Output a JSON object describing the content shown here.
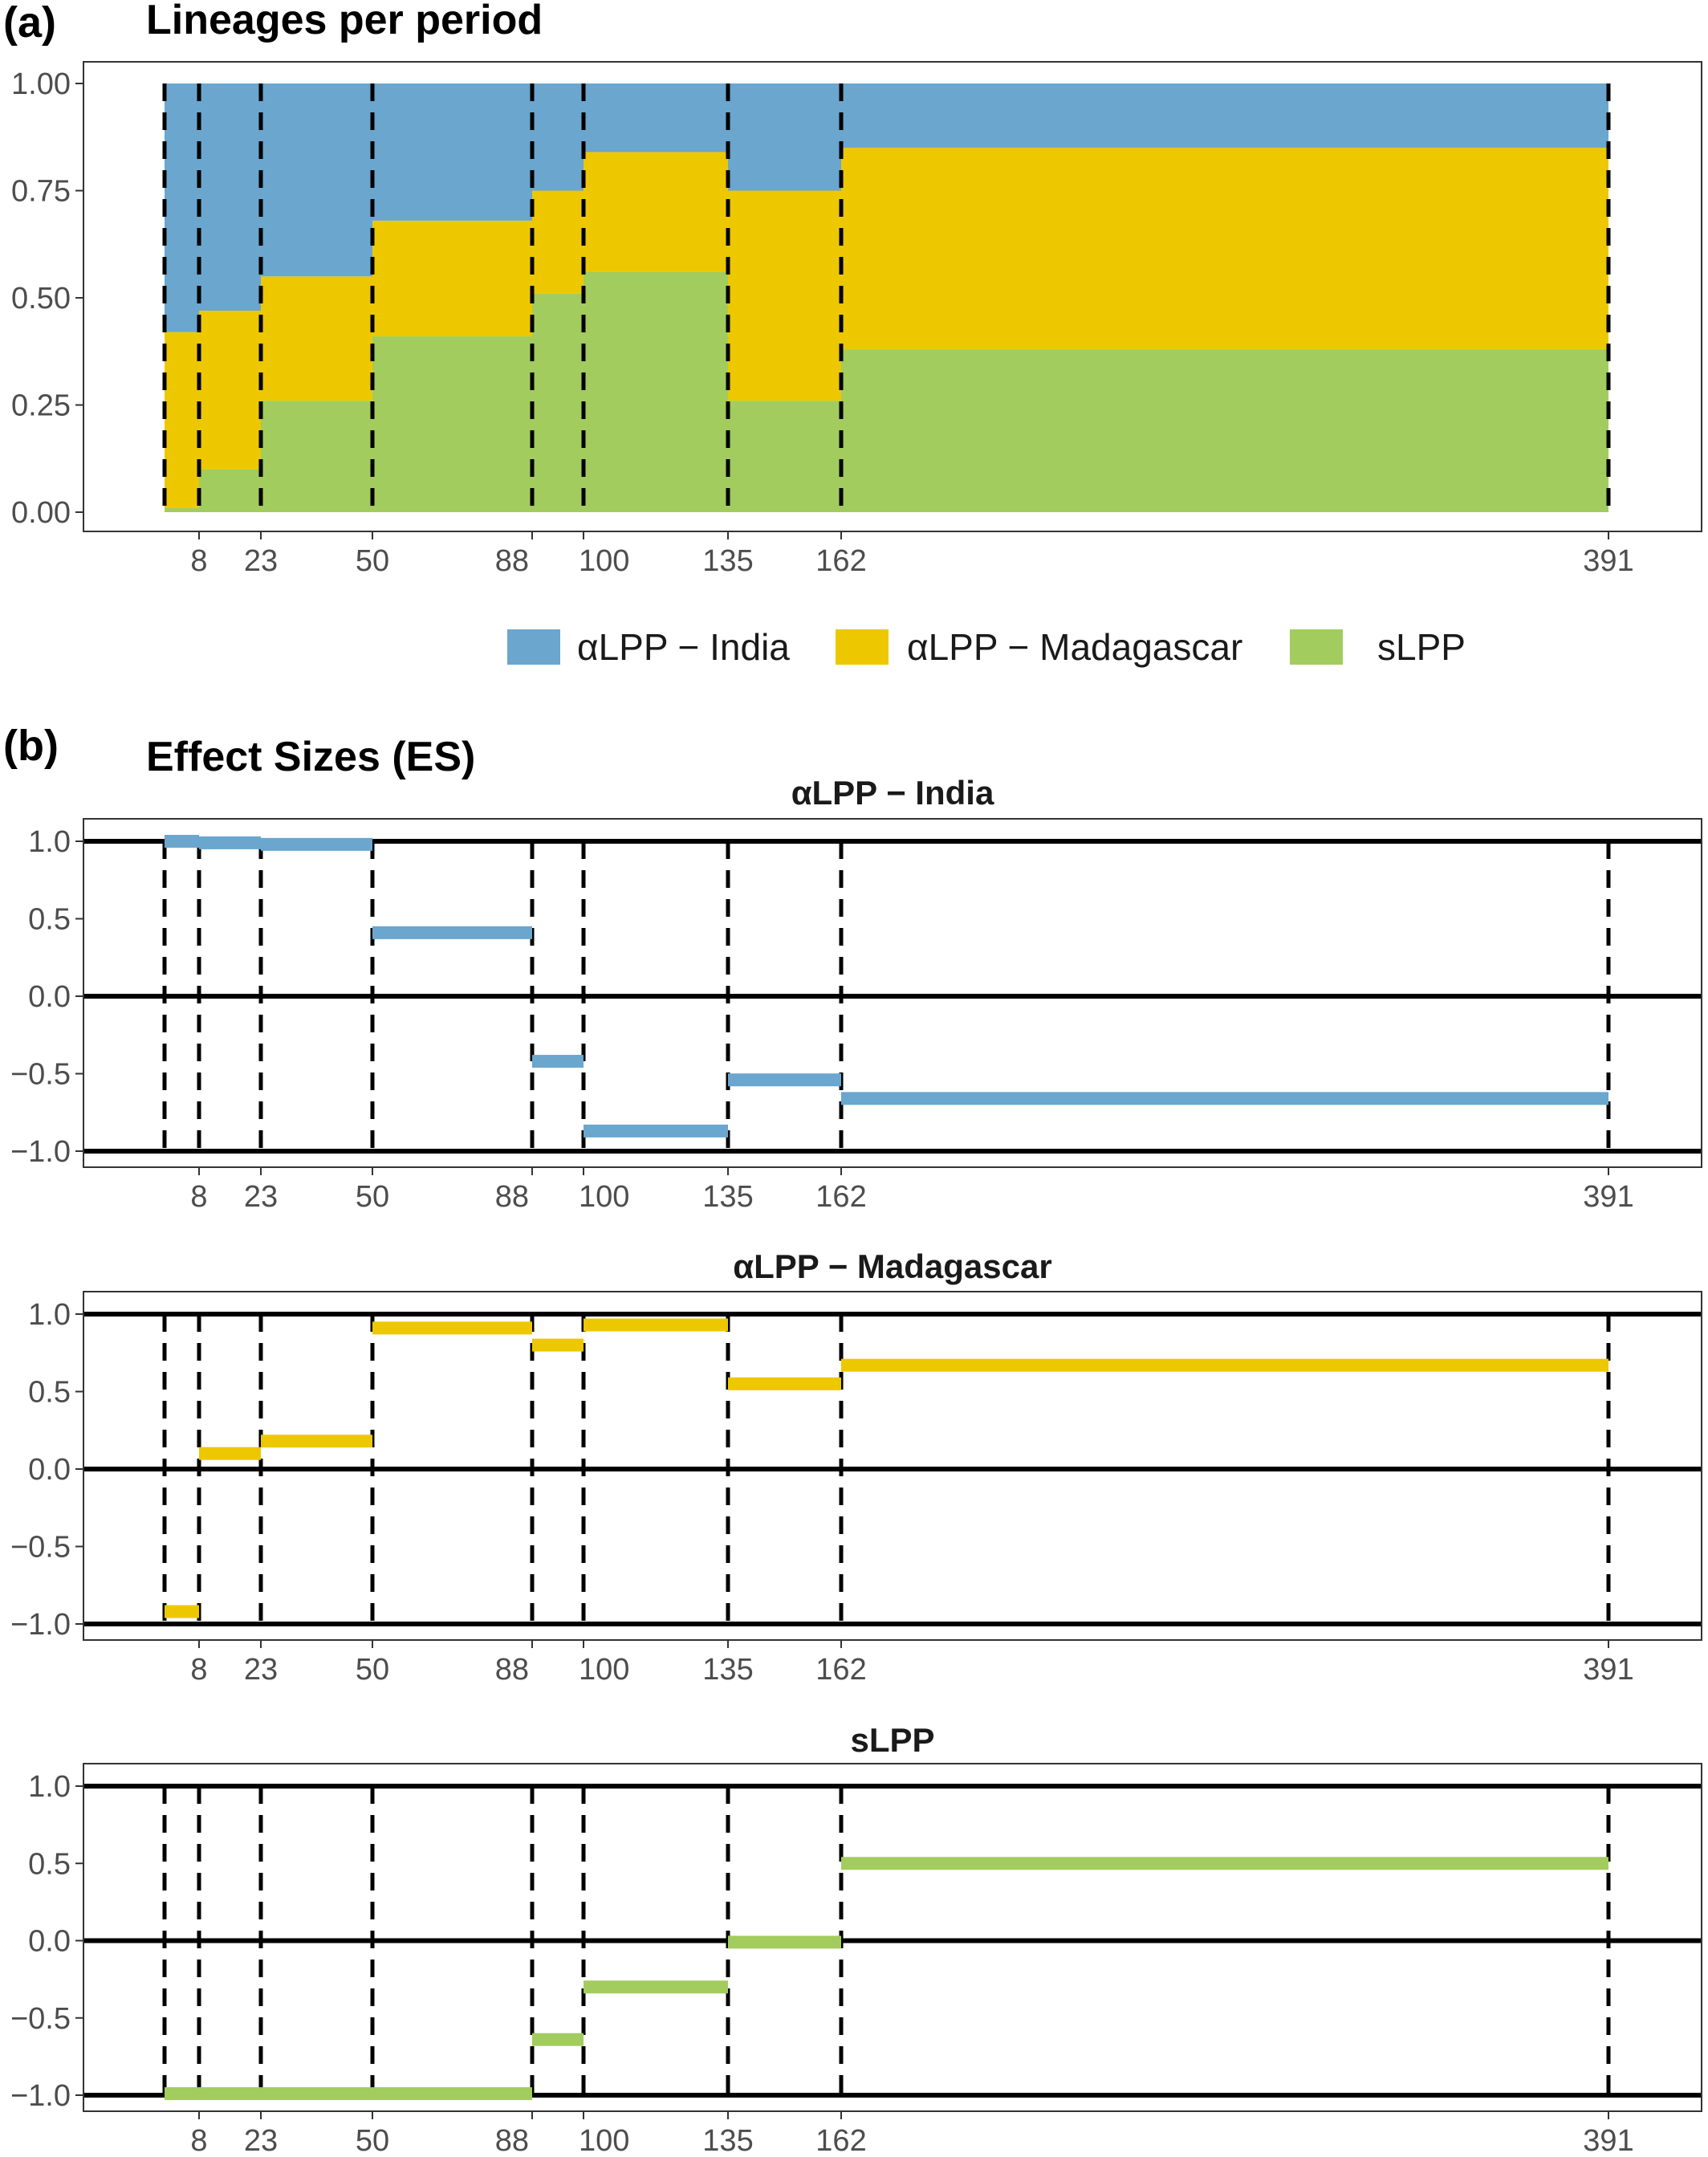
{
  "panel_labels": {
    "a": "(a)",
    "b": "(b)"
  },
  "panel_a": {
    "title": "Lineages per period"
  },
  "panel_b": {
    "title": "Effect Sizes (ES)"
  },
  "colors": {
    "india": "#6AA6CE",
    "madagascar": "#EDC800",
    "slpp": "#A2CC5E"
  },
  "legend": {
    "items": [
      {
        "label": "αLPP − India",
        "color": "#6AA6CE"
      },
      {
        "label": "αLPP − Madagascar",
        "color": "#EDC800"
      },
      {
        "label": "sLPP",
        "color": "#A2CC5E"
      }
    ]
  },
  "x_ticks": [
    "8",
    "23",
    "50",
    "88",
    "100",
    "135",
    "162",
    "391"
  ],
  "chart_data": [
    {
      "type": "area",
      "title": "Lineages per period",
      "subtitle": "",
      "xlabel": "",
      "ylabel": "",
      "x_ticks": [
        8,
        23,
        50,
        88,
        100,
        135,
        162,
        391
      ],
      "y_ticks": [
        "0.00",
        "0.25",
        "0.50",
        "0.75",
        "1.00"
      ],
      "ylim": [
        0,
        1
      ],
      "grid": false,
      "legend_position": "bottom",
      "periods": [
        {
          "start": 0,
          "end": 8,
          "slpp": 0.01,
          "madagascar": 0.41,
          "india": 0.58
        },
        {
          "start": 8,
          "end": 23,
          "slpp": 0.1,
          "madagascar": 0.37,
          "india": 0.53
        },
        {
          "start": 23,
          "end": 50,
          "slpp": 0.26,
          "madagascar": 0.29,
          "india": 0.45
        },
        {
          "start": 50,
          "end": 88,
          "slpp": 0.41,
          "madagascar": 0.27,
          "india": 0.32
        },
        {
          "start": 88,
          "end": 100,
          "slpp": 0.51,
          "madagascar": 0.24,
          "india": 0.25
        },
        {
          "start": 100,
          "end": 135,
          "slpp": 0.56,
          "madagascar": 0.28,
          "india": 0.16
        },
        {
          "start": 135,
          "end": 162,
          "slpp": 0.26,
          "madagascar": 0.49,
          "india": 0.25
        },
        {
          "start": 162,
          "end": 391,
          "slpp": 0.38,
          "madagascar": 0.47,
          "india": 0.15
        }
      ]
    },
    {
      "type": "step",
      "title": "αLPP − India",
      "xlabel": "",
      "ylabel": "",
      "y_ticks": [
        "−1.0",
        "−0.5",
        "0.0",
        "0.5",
        "1.0"
      ],
      "ylim": [
        -1,
        1
      ],
      "segments": [
        {
          "start": 0,
          "end": 8,
          "es": 1.0
        },
        {
          "start": 8,
          "end": 23,
          "es": 0.99
        },
        {
          "start": 23,
          "end": 50,
          "es": 0.98
        },
        {
          "start": 50,
          "end": 88,
          "es": 0.41
        },
        {
          "start": 88,
          "end": 100,
          "es": -0.42
        },
        {
          "start": 100,
          "end": 135,
          "es": -0.87
        },
        {
          "start": 135,
          "end": 162,
          "es": -0.54
        },
        {
          "start": 162,
          "end": 391,
          "es": -0.66
        }
      ]
    },
    {
      "type": "step",
      "title": "αLPP − Madagascar",
      "xlabel": "",
      "ylabel": "",
      "y_ticks": [
        "−1.0",
        "−0.5",
        "0.0",
        "0.5",
        "1.0"
      ],
      "ylim": [
        -1,
        1
      ],
      "segments": [
        {
          "start": 0,
          "end": 8,
          "es": -0.92
        },
        {
          "start": 8,
          "end": 23,
          "es": 0.1
        },
        {
          "start": 23,
          "end": 50,
          "es": 0.18
        },
        {
          "start": 50,
          "end": 88,
          "es": 0.91
        },
        {
          "start": 88,
          "end": 100,
          "es": 0.8
        },
        {
          "start": 100,
          "end": 135,
          "es": 0.93
        },
        {
          "start": 135,
          "end": 162,
          "es": 0.55
        },
        {
          "start": 162,
          "end": 391,
          "es": 0.67
        }
      ]
    },
    {
      "type": "step",
      "title": "sLPP",
      "xlabel": "",
      "ylabel": "",
      "y_ticks": [
        "−1.0",
        "−0.5",
        "0.0",
        "0.5",
        "1.0"
      ],
      "ylim": [
        -1,
        1
      ],
      "segments": [
        {
          "start": 0,
          "end": 8,
          "es": -0.99
        },
        {
          "start": 8,
          "end": 23,
          "es": -0.99
        },
        {
          "start": 23,
          "end": 50,
          "es": -0.99
        },
        {
          "start": 50,
          "end": 88,
          "es": -0.99
        },
        {
          "start": 88,
          "end": 100,
          "es": -0.64
        },
        {
          "start": 100,
          "end": 135,
          "es": -0.3
        },
        {
          "start": 135,
          "end": 162,
          "es": -0.01
        },
        {
          "start": 162,
          "end": 391,
          "es": 0.5
        }
      ]
    }
  ]
}
